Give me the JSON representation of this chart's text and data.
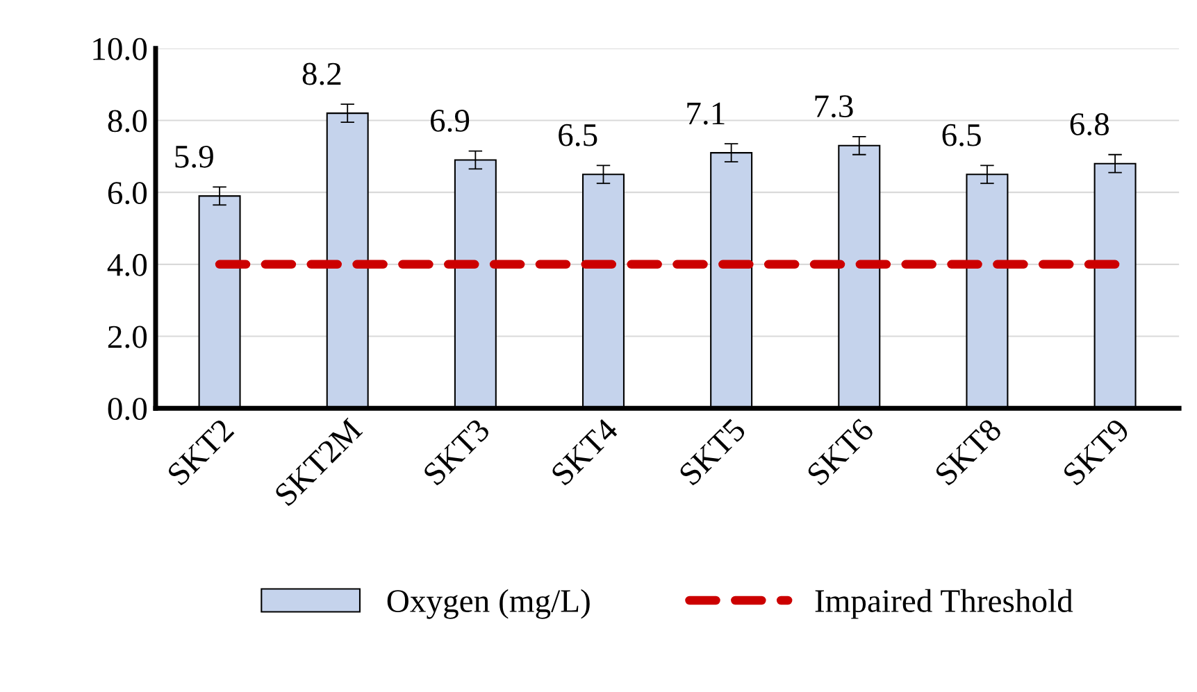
{
  "chart_data": {
    "type": "bar",
    "categories": [
      "SKT2",
      "SKT2M",
      "SKT3",
      "SKT4",
      "SKT5",
      "SKT6",
      "SKT8",
      "SKT9"
    ],
    "series": [
      {
        "name": "Oxygen (mg/L)",
        "color": "#c5d3ec",
        "values": [
          5.9,
          8.2,
          6.9,
          6.5,
          7.1,
          7.3,
          6.5,
          6.8
        ],
        "errors": [
          0.25,
          0.25,
          0.25,
          0.25,
          0.25,
          0.25,
          0.25,
          0.25
        ],
        "data_labels": true
      },
      {
        "name": "Impaired Threshold",
        "type": "line",
        "color": "#cc0000",
        "line_style": "dashed",
        "values": [
          4.0,
          4.0,
          4.0,
          4.0,
          4.0,
          4.0,
          4.0,
          4.0
        ]
      }
    ],
    "ylim": [
      0,
      10
    ],
    "yticks": [
      {
        "value": 0,
        "label": "0.0"
      },
      {
        "value": 2,
        "label": "2.0"
      },
      {
        "value": 4,
        "label": "4.0"
      },
      {
        "value": 6,
        "label": "6.0"
      },
      {
        "value": 8,
        "label": "8.0"
      },
      {
        "value": 10,
        "label": "10.0"
      }
    ],
    "grid": "y",
    "legend": "bottom"
  }
}
